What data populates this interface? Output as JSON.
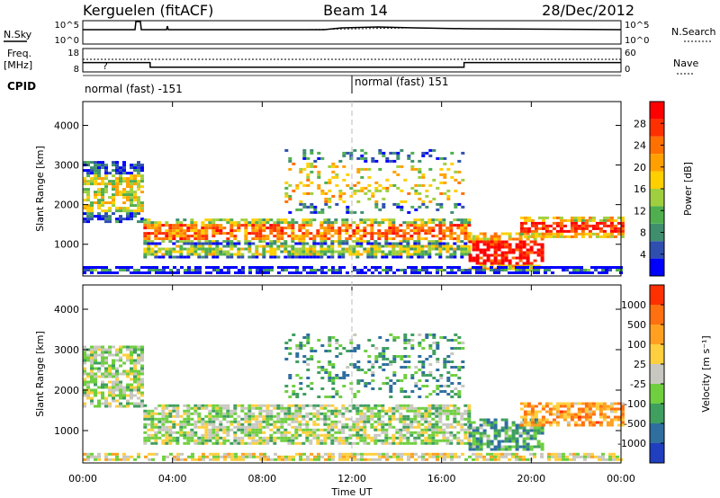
{
  "header": {
    "station": "Kerguelen (fitACF)",
    "beam": "Beam 14",
    "date": "28/Dec/2012"
  },
  "strips": {
    "nsky_label": "N.Sky",
    "nsky_ticks": [
      "10^5",
      "10^0"
    ],
    "nsearch_label": "N.Search",
    "freq_label": "Freq.",
    "freq_unit": "[MHz]",
    "freq_ticks": [
      "18",
      "8"
    ],
    "nave_label": "Nave",
    "nave_ticks": [
      "60",
      "0"
    ],
    "cpid_label": "CPID",
    "cpid_segments": [
      {
        "label": "normal (fast) -151",
        "start_hour": 0,
        "end_hour": 12
      },
      {
        "label": "normal (fast) 151",
        "start_hour": 12,
        "end_hour": 24
      }
    ],
    "freq_mhz_profile": [
      {
        "hour": 0,
        "mhz": 12
      },
      {
        "hour": 3,
        "mhz": 12
      },
      {
        "hour": 3,
        "mhz": 10
      },
      {
        "hour": 17,
        "mhz": 10
      },
      {
        "hour": 17,
        "mhz": 12
      },
      {
        "hour": 24,
        "mhz": 12
      }
    ]
  },
  "chart_data": [
    {
      "type": "heatmap",
      "name": "power",
      "ylabel": "Slant Range [km]",
      "xlim": [
        0,
        24
      ],
      "ylim": [
        200,
        4600
      ],
      "yticks": [
        "1000",
        "2000",
        "3000",
        "4000"
      ],
      "colorbar_label": "Power [dB]",
      "colorbar_ticks": [
        "28",
        "24",
        "20",
        "16",
        "12",
        "8",
        "4"
      ],
      "colorbar_colors": [
        "#0000ff",
        "#2f4faf",
        "#3f8f6f",
        "#4faf4f",
        "#9fcf3f",
        "#ffcf00",
        "#ffa000",
        "#ff7000",
        "#ff3000",
        "#ff0000"
      ],
      "features": [
        {
          "t0": 0,
          "t1": 2.6,
          "r0": 1600,
          "r1": 3100,
          "level": 0.5
        },
        {
          "t0": 2.7,
          "t1": 17.2,
          "r0": 1050,
          "r1": 1650,
          "level": 0.75
        },
        {
          "t0": 2.7,
          "t1": 17.2,
          "r0": 700,
          "r1": 1050,
          "level": 0.45
        },
        {
          "t0": 17.2,
          "t1": 20.5,
          "r0": 350,
          "r1": 1300,
          "level": 0.95
        },
        {
          "t0": 19.5,
          "t1": 24,
          "r0": 1200,
          "r1": 1700,
          "level": 0.9
        },
        {
          "t0": 9,
          "t1": 17,
          "r0": 1800,
          "r1": 3400,
          "level": 0.55
        },
        {
          "t0": 0,
          "t1": 24,
          "r0": 300,
          "r1": 450,
          "level": 0.25
        }
      ]
    },
    {
      "type": "heatmap",
      "name": "velocity",
      "ylabel": "Slant Range [km]",
      "xlabel": "Time UT",
      "xlim": [
        0,
        24
      ],
      "ylim": [
        200,
        4600
      ],
      "xticks": [
        "00:00",
        "04:00",
        "08:00",
        "12:00",
        "16:00",
        "20:00",
        "00:00"
      ],
      "yticks": [
        "1000",
        "2000",
        "3000",
        "4000"
      ],
      "colorbar_label": "Velocity [m s⁻¹]",
      "colorbar_ticks": [
        "1000",
        "500",
        "100",
        "25",
        "-25",
        "-100",
        "-500",
        "-1000"
      ],
      "colorbar_colors": [
        "#1f3fbf",
        "#2f6f9f",
        "#3f9f5f",
        "#6fcf3f",
        "#c8c8c0",
        "#ffcf3f",
        "#ffa020",
        "#ff7010",
        "#ff3000"
      ],
      "features": [
        {
          "t0": 0,
          "t1": 2.6,
          "r0": 1600,
          "r1": 3100,
          "level": 0.45
        },
        {
          "t0": 2.7,
          "t1": 17.2,
          "r0": 1050,
          "r1": 1650,
          "level": 0.45
        },
        {
          "t0": 2.7,
          "t1": 17.2,
          "r0": 700,
          "r1": 1050,
          "level": 0.45
        },
        {
          "t0": 17.2,
          "t1": 20.5,
          "r0": 500,
          "r1": 1300,
          "level": 0.3
        },
        {
          "t0": 19.5,
          "t1": 24,
          "r0": 1100,
          "r1": 1700,
          "level": 0.72
        },
        {
          "t0": 9,
          "t1": 17,
          "r0": 1800,
          "r1": 3400,
          "level": 0.3
        },
        {
          "t0": 0,
          "t1": 24,
          "r0": 300,
          "r1": 450,
          "level": 0.55
        }
      ]
    }
  ]
}
